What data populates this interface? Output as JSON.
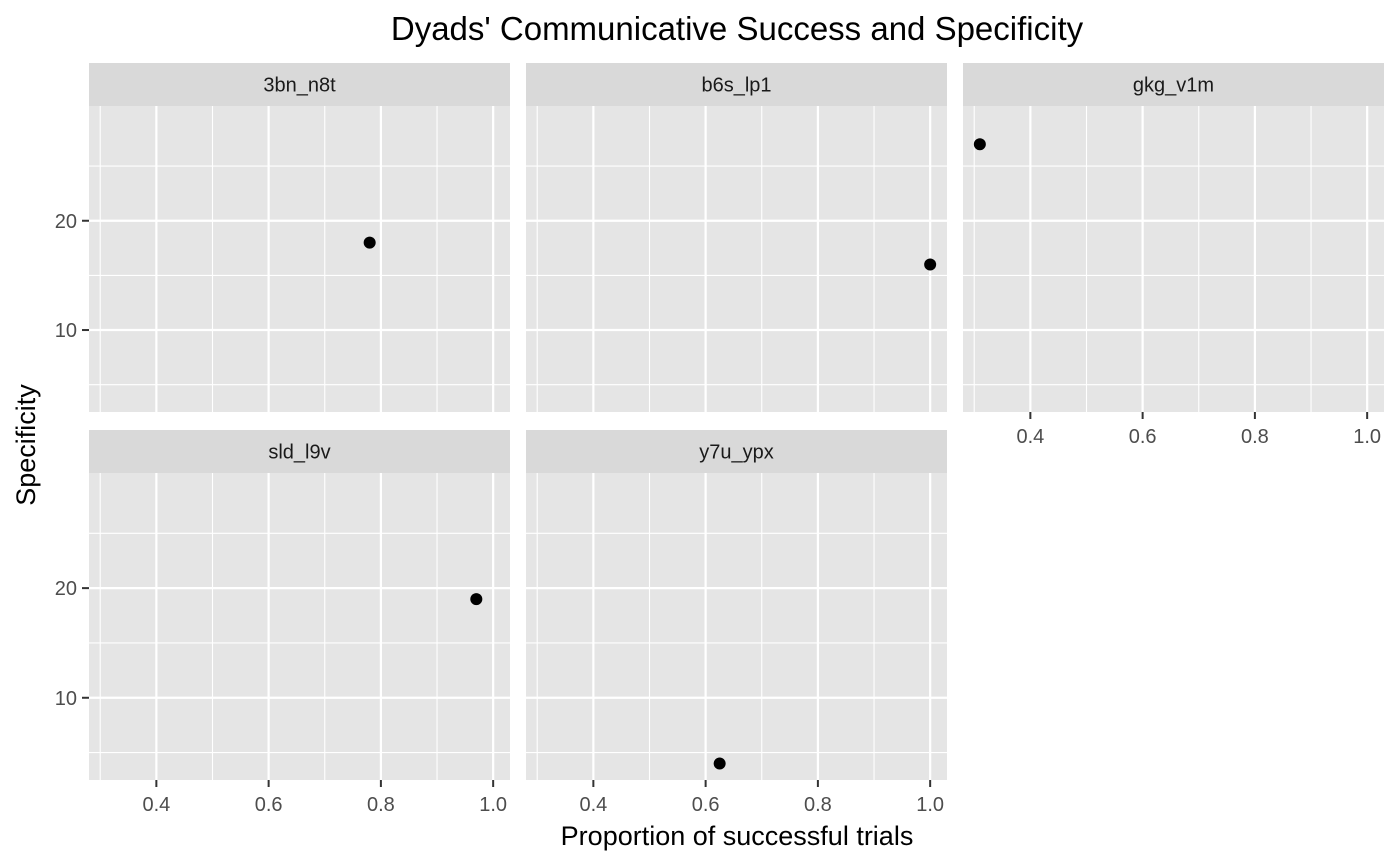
{
  "chart_data": {
    "type": "scatter",
    "title": "Dyads' Communicative Success and Specificity",
    "xlabel": "Proportion of successful trials",
    "ylabel": "Specificity",
    "xlim": [
      0.28,
      1.03
    ],
    "ylim": [
      2.5,
      30.5
    ],
    "x_ticks": [
      0.4,
      0.6,
      0.8,
      1.0
    ],
    "x_tick_labels": [
      "0.4",
      "0.6",
      "0.8",
      "1.0"
    ],
    "y_ticks": [
      10,
      20
    ],
    "y_tick_labels": [
      "10",
      "20"
    ],
    "grid": true,
    "facets": [
      {
        "label": "3bn_n8t",
        "points": [
          {
            "x": 0.78,
            "y": 18
          }
        ]
      },
      {
        "label": "b6s_lp1",
        "points": [
          {
            "x": 1.0,
            "y": 16
          }
        ]
      },
      {
        "label": "gkg_v1m",
        "points": [
          {
            "x": 0.31,
            "y": 27
          }
        ]
      },
      {
        "label": "sld_l9v",
        "points": [
          {
            "x": 0.97,
            "y": 19
          }
        ]
      },
      {
        "label": "y7u_ypx",
        "points": [
          {
            "x": 0.625,
            "y": 4
          }
        ]
      }
    ],
    "colors": {
      "panel_background": "#e5e5e5",
      "strip_background": "#d9d9d9",
      "grid": "#ffffff",
      "point": "#000000",
      "tick_text": "#4d4d4d"
    }
  }
}
